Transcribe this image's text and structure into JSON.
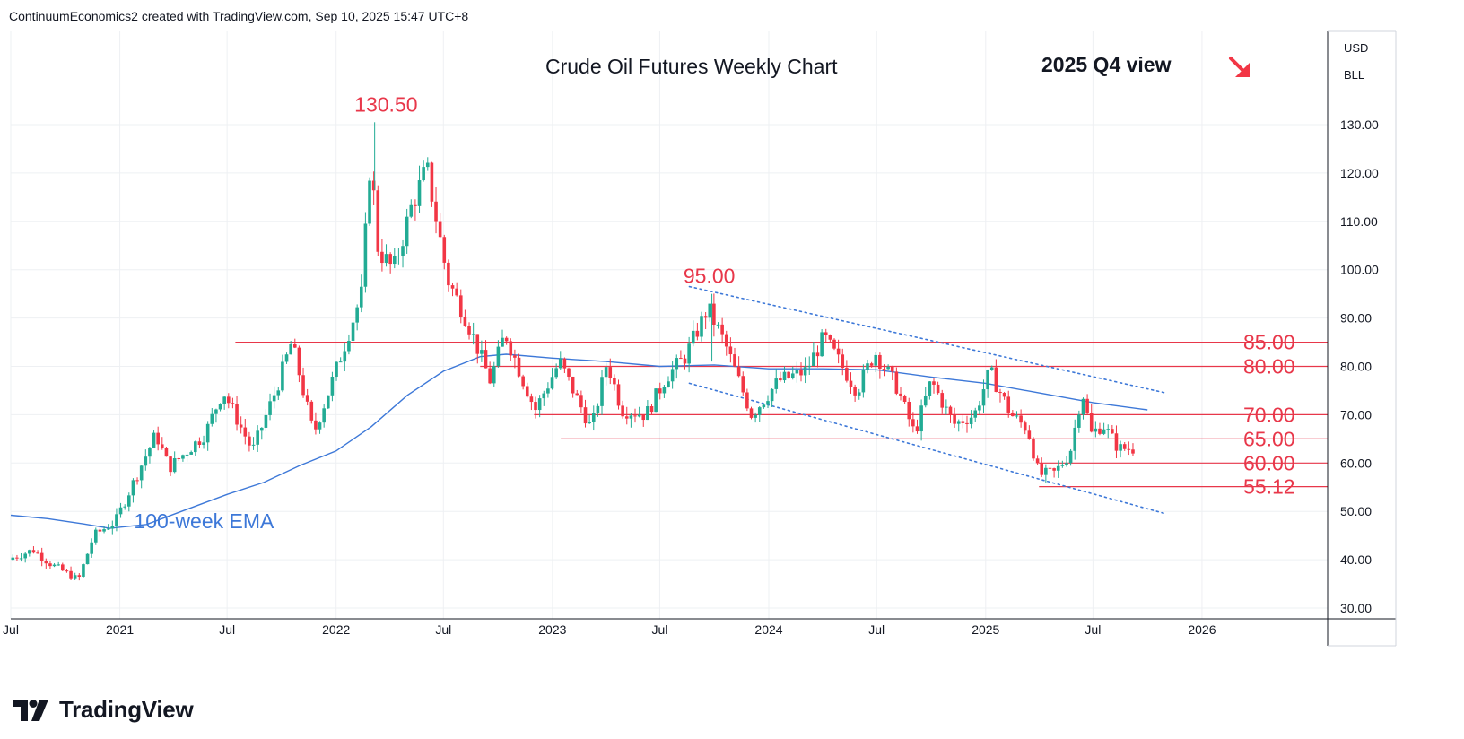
{
  "header": {
    "attribution": "ContinuumEconomics2 created with TradingView.com, Sep 10, 2025 15:47 UTC+8"
  },
  "branding": {
    "name": "TradingView"
  },
  "colors": {
    "up": "#22ab94",
    "down": "#f23645",
    "level": "#e8374a",
    "ema": "#3d78d8",
    "channel": "#3d78d8",
    "grid": "#eef0f3"
  },
  "chart_data": {
    "type": "candlestick",
    "title": "Crude Oil Futures Weekly Chart",
    "subtitle": "2025 Q4 view",
    "outlook": "bearish-arrow-icon",
    "currency": "USD",
    "unit": "BLL",
    "ylim": [
      30,
      145
    ],
    "xlim": [
      "2020-07-01",
      "2026-08-01"
    ],
    "y_ticks": [
      30,
      40,
      50,
      60,
      70,
      80,
      90,
      100,
      110,
      120,
      130
    ],
    "y_tick_labels": [
      "30.00",
      "40.00",
      "50.00",
      "60.00",
      "70.00",
      "80.00",
      "90.00",
      "100.00",
      "110.00",
      "120.00",
      "130.00"
    ],
    "x_ticks": [
      {
        "date": "2020-07-01",
        "label": "Jul"
      },
      {
        "date": "2021-01-01",
        "label": "2021"
      },
      {
        "date": "2021-07-01",
        "label": "Jul"
      },
      {
        "date": "2022-01-01",
        "label": "2022"
      },
      {
        "date": "2022-07-01",
        "label": "Jul"
      },
      {
        "date": "2023-01-01",
        "label": "2023"
      },
      {
        "date": "2023-07-01",
        "label": "Jul"
      },
      {
        "date": "2024-01-01",
        "label": "2024"
      },
      {
        "date": "2024-07-01",
        "label": "Jul"
      },
      {
        "date": "2025-01-01",
        "label": "2025"
      },
      {
        "date": "2025-07-01",
        "label": "Jul"
      },
      {
        "date": "2026-01-01",
        "label": "2026"
      }
    ],
    "price_path": [
      [
        "2020-07-01",
        40
      ],
      [
        "2020-08-15",
        42
      ],
      [
        "2020-09-15",
        39
      ],
      [
        "2020-10-30",
        35.8
      ],
      [
        "2020-11-25",
        45
      ],
      [
        "2021-01-01",
        48
      ],
      [
        "2021-02-15",
        60
      ],
      [
        "2021-03-10",
        66
      ],
      [
        "2021-04-01",
        59
      ],
      [
        "2021-06-01",
        66
      ],
      [
        "2021-07-01",
        75
      ],
      [
        "2021-08-20",
        62.5
      ],
      [
        "2021-10-01",
        76
      ],
      [
        "2021-10-25",
        85
      ],
      [
        "2021-12-01",
        66
      ],
      [
        "2022-01-10",
        80
      ],
      [
        "2022-02-20",
        95
      ],
      [
        "2022-03-07",
        123.5
      ],
      [
        "2022-03-20",
        104
      ],
      [
        "2022-04-15",
        100
      ],
      [
        "2022-05-15",
        113
      ],
      [
        "2022-06-10",
        121
      ],
      [
        "2022-07-15",
        98
      ],
      [
        "2022-08-15",
        90
      ],
      [
        "2022-09-25",
        77
      ],
      [
        "2022-10-20",
        87
      ],
      [
        "2022-11-20",
        77
      ],
      [
        "2022-12-10",
        71
      ],
      [
        "2023-01-20",
        81
      ],
      [
        "2023-03-15",
        67
      ],
      [
        "2023-04-10",
        81
      ],
      [
        "2023-05-05",
        71
      ],
      [
        "2023-06-15",
        70
      ],
      [
        "2023-07-20",
        78
      ],
      [
        "2023-08-20",
        82
      ],
      [
        "2023-09-27",
        92
      ],
      [
        "2023-10-25",
        85
      ],
      [
        "2023-12-10",
        70
      ],
      [
        "2024-01-25",
        77
      ],
      [
        "2024-03-10",
        79
      ],
      [
        "2024-04-10",
        86
      ],
      [
        "2024-06-05",
        75
      ],
      [
        "2024-07-05",
        83
      ],
      [
        "2024-08-10",
        76
      ],
      [
        "2024-09-10",
        66
      ],
      [
        "2024-10-08",
        77
      ],
      [
        "2024-11-15",
        68
      ],
      [
        "2024-12-20",
        70
      ],
      [
        "2025-01-15",
        79
      ],
      [
        "2025-02-20",
        70
      ],
      [
        "2025-03-20",
        67
      ],
      [
        "2025-04-08",
        57.5
      ],
      [
        "2025-05-05",
        58
      ],
      [
        "2025-05-30",
        62
      ],
      [
        "2025-06-20",
        75
      ],
      [
        "2025-07-05",
        66
      ],
      [
        "2025-07-25",
        68
      ],
      [
        "2025-08-20",
        63
      ],
      [
        "2025-09-08",
        63
      ]
    ],
    "candles_note": "weekly OHLC candles following price_path",
    "extremes": [
      {
        "date": "2022-03-07",
        "value": 130.5,
        "label": "130.50",
        "anchor": "2022-02-01"
      },
      {
        "date": "2023-09-27",
        "value": 95.0,
        "label": "95.00",
        "anchor": "2023-08-10"
      }
    ],
    "ema": {
      "name": "100-week EMA",
      "label_at": [
        "2021-01-25",
        48
      ],
      "points": [
        [
          "2020-07-01",
          49.2
        ],
        [
          "2020-09-01",
          48.5
        ],
        [
          "2020-11-01",
          47.4
        ],
        [
          "2020-12-15",
          46.5
        ],
        [
          "2021-02-15",
          47.3
        ],
        [
          "2021-04-15",
          50
        ],
        [
          "2021-07-01",
          53.5
        ],
        [
          "2021-09-01",
          56
        ],
        [
          "2021-11-01",
          59.5
        ],
        [
          "2022-01-01",
          62.5
        ],
        [
          "2022-03-01",
          67.5
        ],
        [
          "2022-05-01",
          74
        ],
        [
          "2022-07-01",
          79
        ],
        [
          "2022-09-01",
          82
        ],
        [
          "2022-10-15",
          82.5
        ],
        [
          "2023-01-01",
          81.7
        ],
        [
          "2023-04-01",
          81
        ],
        [
          "2023-07-01",
          80
        ],
        [
          "2023-10-01",
          80.3
        ],
        [
          "2024-01-01",
          79.5
        ],
        [
          "2024-04-01",
          79.5
        ],
        [
          "2024-07-01",
          79.3
        ],
        [
          "2024-10-01",
          77.8
        ],
        [
          "2025-01-01",
          76.5
        ],
        [
          "2025-04-01",
          74.5
        ],
        [
          "2025-07-01",
          72.5
        ],
        [
          "2025-10-01",
          71
        ]
      ]
    },
    "channel": [
      {
        "from": [
          "2023-08-20",
          96.5
        ],
        "to": [
          "2025-11-01",
          74.5
        ]
      },
      {
        "from": [
          "2023-08-20",
          76.5
        ],
        "to": [
          "2025-11-01",
          49.5
        ]
      }
    ],
    "levels": [
      {
        "value": 85.0,
        "label": "85.00",
        "from": "2021-07-15"
      },
      {
        "value": 80.0,
        "label": "80.00",
        "from": "2022-09-01"
      },
      {
        "value": 70.0,
        "label": "70.00",
        "from": "2022-12-01"
      },
      {
        "value": 65.0,
        "label": "65.00",
        "from": "2023-01-15"
      },
      {
        "value": 60.0,
        "label": "60.00",
        "from": "2025-04-01"
      },
      {
        "value": 55.12,
        "label": "55.12",
        "from": "2025-04-01"
      }
    ]
  }
}
